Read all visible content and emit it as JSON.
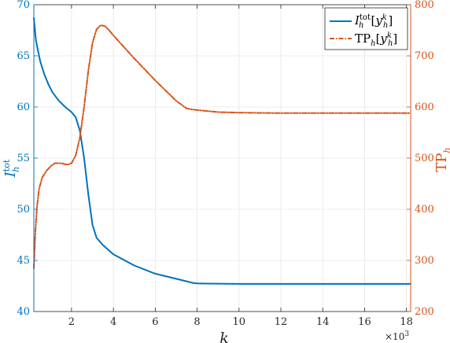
{
  "chart_data": {
    "type": "line",
    "title": "",
    "xlabel": "k",
    "x_exponent_label": "×10",
    "x_exponent_power": "3",
    "xlim": [
      200,
      18200
    ],
    "x_ticks": [
      2000,
      4000,
      6000,
      8000,
      10000,
      12000,
      14000,
      16000,
      18000
    ],
    "x_tick_labels": [
      "2",
      "4",
      "6",
      "8",
      "10",
      "12",
      "14",
      "16",
      "18"
    ],
    "y_left": {
      "label_base": "I",
      "label_sub": "h",
      "label_sup": "tot",
      "lim": [
        40,
        70
      ],
      "ticks": [
        40,
        45,
        50,
        55,
        60,
        65,
        70
      ],
      "tick_labels": [
        "40",
        "45",
        "50",
        "55",
        "60",
        "65",
        "70"
      ],
      "color": "#0072BD"
    },
    "y_right": {
      "label_base": "TP",
      "label_sub": "h",
      "lim": [
        200,
        800
      ],
      "ticks": [
        200,
        300,
        400,
        500,
        600,
        700,
        800
      ],
      "tick_labels": [
        "200",
        "300",
        "400",
        "500",
        "600",
        "700",
        "800"
      ],
      "color": "#D95319"
    },
    "grid": true,
    "legend_position": "top-right",
    "series": [
      {
        "name": "I_h^tot[y_h^k]",
        "legend_base": "I",
        "legend_sup": "tot",
        "legend_sub": "h",
        "legend_bracket_base": "y",
        "legend_bracket_sup": "k",
        "legend_bracket_sub": "h",
        "axis": "left",
        "color": "#0072BD",
        "style": "solid",
        "x": [
          200,
          300,
          500,
          700,
          900,
          1100,
          1400,
          1700,
          2000,
          2200,
          2400,
          2600,
          2800,
          3000,
          3200,
          3500,
          4000,
          5000,
          6000,
          7000,
          7500,
          7800,
          8000,
          10000,
          12000,
          14000,
          16000,
          18200
        ],
        "y": [
          68.7,
          66.5,
          64.5,
          63.2,
          62.2,
          61.4,
          60.6,
          60.0,
          59.5,
          59.0,
          57.7,
          55.0,
          51.5,
          48.5,
          47.2,
          46.5,
          45.6,
          44.5,
          43.7,
          43.2,
          42.95,
          42.8,
          42.75,
          42.7,
          42.7,
          42.7,
          42.7,
          42.7
        ]
      },
      {
        "name": "TP_h[y_h^k]",
        "legend_base": "TP",
        "legend_sub": "h",
        "legend_bracket_base": "y",
        "legend_bracket_sup": "k",
        "legend_bracket_sub": "h",
        "axis": "right",
        "color": "#D95319",
        "style": "dash-dot",
        "x": [
          200,
          280,
          350,
          450,
          600,
          800,
          1000,
          1200,
          1500,
          1800,
          2000,
          2200,
          2400,
          2600,
          2800,
          3000,
          3200,
          3400,
          3600,
          3800,
          4000,
          5000,
          6000,
          7000,
          7500,
          7800,
          8000,
          9000,
          10000,
          12000,
          14000,
          16000,
          18200
        ],
        "y": [
          285,
          360,
          405,
          440,
          462,
          475,
          484,
          490,
          490,
          487,
          490,
          505,
          540,
          600,
          670,
          725,
          752,
          760,
          758,
          750,
          740,
          695,
          652,
          612,
          597,
          595,
          594,
          590,
          589,
          588,
          588,
          588,
          588
        ]
      }
    ]
  }
}
